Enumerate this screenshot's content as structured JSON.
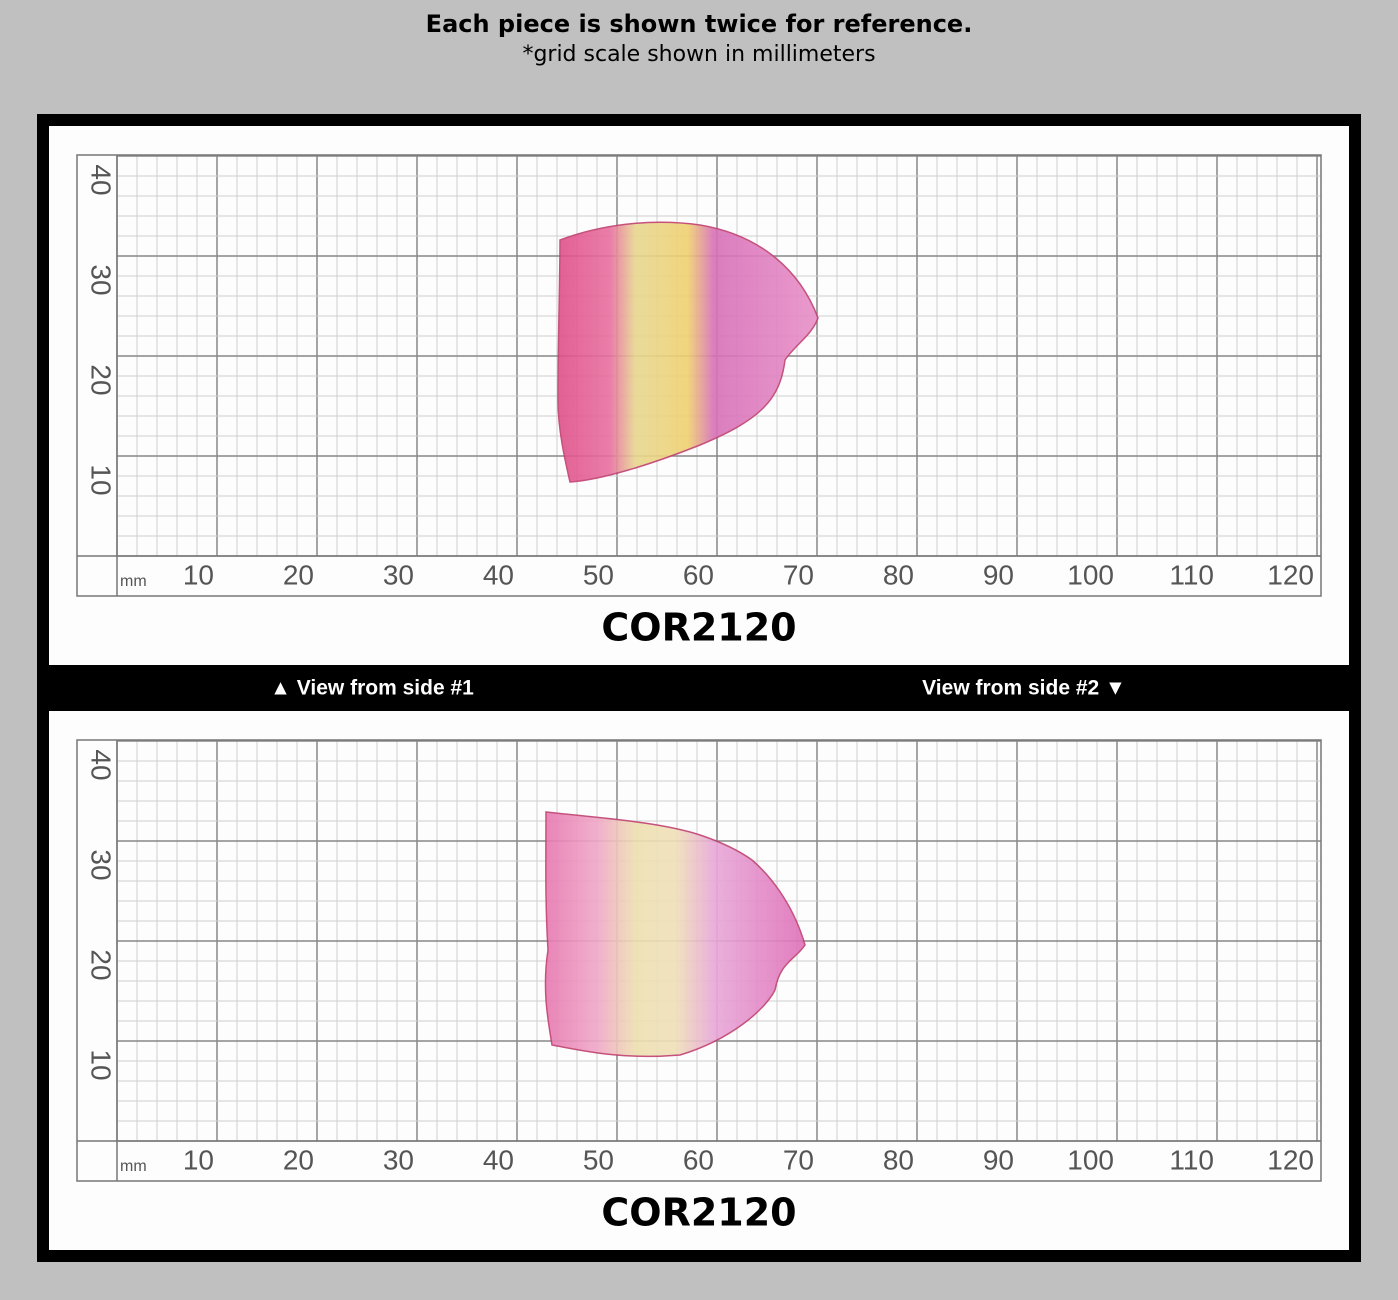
{
  "header": {
    "title": "Each piece is shown twice for reference.",
    "subtitle": "*grid scale shown in millimeters"
  },
  "panels": [
    {
      "x_labels": [
        10,
        20,
        30,
        40,
        50,
        60,
        70,
        80,
        90,
        100,
        110,
        120
      ],
      "y_labels": [
        10,
        20,
        30,
        40
      ],
      "unit": "mm",
      "label": "COR2120"
    },
    {
      "x_labels": [
        10,
        20,
        30,
        40,
        50,
        60,
        70,
        80,
        90,
        100,
        110,
        120
      ],
      "y_labels": [
        10,
        20,
        30,
        40
      ],
      "unit": "mm",
      "label": "COR2120"
    }
  ],
  "divider": {
    "left": "▲ View from side #1",
    "right": "View from side #2 ▼"
  }
}
